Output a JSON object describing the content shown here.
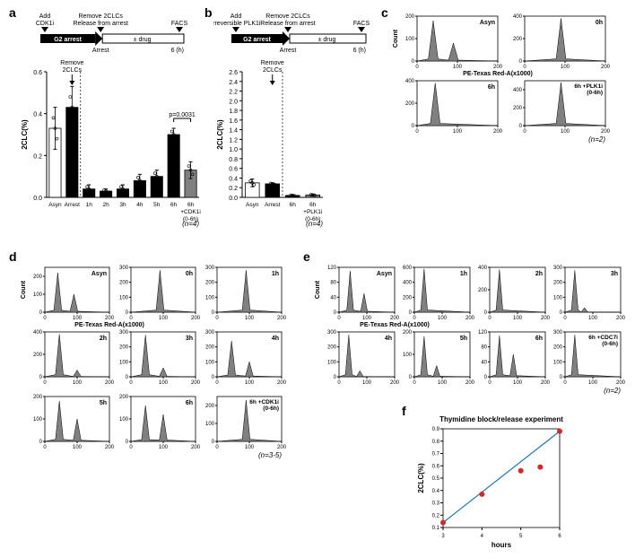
{
  "panel_a": {
    "label": "a",
    "timeline": {
      "labels": [
        "Add CDK1i",
        "Remove 2CLCs Release from arrest",
        "FACS"
      ],
      "segments": [
        "G2 arrest",
        "± drug"
      ],
      "arrest_label": "Arrest",
      "end_label": "6 (h)"
    },
    "chart": {
      "type": "bar",
      "ylabel": "2CLC(%)",
      "ylim": [
        0,
        0.6
      ],
      "ytick_step": 0.2,
      "annotation": "Remove 2CLCs",
      "categories": [
        "Asyn",
        "Arrest",
        "1h",
        "2h",
        "3h",
        "4h",
        "5h",
        "6h",
        "6h +CDK1i (0-6h)"
      ],
      "values": [
        0.33,
        0.43,
        0.04,
        0.03,
        0.04,
        0.08,
        0.1,
        0.3,
        0.13
      ],
      "errors": [
        0.1,
        0.1,
        0.02,
        0.01,
        0.02,
        0.03,
        0.03,
        0.03,
        0.04
      ],
      "bar_colors": [
        "#ffffff",
        "#000000",
        "#000000",
        "#000000",
        "#000000",
        "#000000",
        "#000000",
        "#000000",
        "#808080"
      ],
      "p_value": "p=0.0031",
      "n_label": "(n=4)"
    }
  },
  "panel_b": {
    "label": "b",
    "timeline": {
      "labels": [
        "Add irreversible PLK1i",
        "Remove 2CLCs Release from arrest",
        "FACS"
      ],
      "segments": [
        "G2 arrest",
        "± drug"
      ],
      "arrest_label": "Arrest",
      "end_label": "6 (h)"
    },
    "chart": {
      "type": "bar",
      "ylabel": "2CLC(%)",
      "ylim": [
        0,
        2.6
      ],
      "ytick_step": 0.2,
      "annotation": "Remove 2CLCs",
      "remove": "Remove 2CLCs",
      "categories": [
        "Asyn",
        "Arrest",
        "6h",
        "6h +PLK1i (0-6h)"
      ],
      "values": [
        0.3,
        0.28,
        0.04,
        0.05
      ],
      "errors": [
        0.08,
        0.02,
        0.01,
        0.01
      ],
      "bar_colors": [
        "#ffffff",
        "#000000",
        "#000000",
        "#808080"
      ],
      "n_label": "(n=4)"
    }
  },
  "panel_c": {
    "label": "c",
    "ylabel": "Count",
    "xlabel": "PE-Texas Red-A(x1000)",
    "n_label": "(n=2)",
    "plots": [
      {
        "title": "Asyn",
        "ymax": 200,
        "xticks": [
          0,
          100,
          200
        ],
        "peaks": [
          [
            40,
            180
          ],
          [
            90,
            80
          ]
        ]
      },
      {
        "title": "0h",
        "ymax": 400,
        "xticks": [
          0,
          100,
          200
        ],
        "peaks": [
          [
            90,
            380
          ]
        ]
      },
      {
        "title": "6h",
        "ymax": 400,
        "xticks": [
          0,
          100,
          200
        ],
        "peaks": [
          [
            45,
            380
          ]
        ]
      },
      {
        "title": "6h +PLK1i (0-6h)",
        "ymax": 500,
        "xticks": [
          0,
          100,
          200
        ],
        "peaks": [
          [
            90,
            480
          ]
        ]
      }
    ]
  },
  "panel_d": {
    "label": "d",
    "ylabel": "Count",
    "xlabel": "PE-Texas Red-A(x1000)",
    "n_label": "(n=3-5)",
    "plots": [
      {
        "title": "Asyn",
        "ymax": 250,
        "xticks": [
          0,
          100,
          200
        ],
        "peaks": [
          [
            40,
            220
          ],
          [
            90,
            100
          ]
        ]
      },
      {
        "title": "0h",
        "ymax": 300,
        "xticks": [
          0,
          100,
          200
        ],
        "peaks": [
          [
            90,
            280
          ]
        ]
      },
      {
        "title": "1h",
        "ymax": 300,
        "xticks": [
          0,
          100,
          200
        ],
        "peaks": [
          [
            90,
            280
          ]
        ]
      },
      {
        "title": "2h",
        "ymax": 400,
        "xticks": [
          0,
          100,
          200
        ],
        "peaks": [
          [
            45,
            380
          ],
          [
            100,
            60
          ]
        ]
      },
      {
        "title": "3h",
        "ymax": 300,
        "xticks": [
          0,
          100,
          200
        ],
        "peaks": [
          [
            45,
            280
          ],
          [
            100,
            60
          ]
        ]
      },
      {
        "title": "4h",
        "ymax": 300,
        "xticks": [
          0,
          100,
          200
        ],
        "peaks": [
          [
            45,
            240
          ],
          [
            100,
            100
          ]
        ]
      },
      {
        "title": "5h",
        "ymax": 200,
        "xticks": [
          0,
          100,
          200
        ],
        "peaks": [
          [
            45,
            180
          ],
          [
            100,
            100
          ]
        ]
      },
      {
        "title": "6h",
        "ymax": 200,
        "xticks": [
          0,
          100,
          200
        ],
        "peaks": [
          [
            45,
            160
          ],
          [
            100,
            120
          ]
        ]
      },
      {
        "title": "6h +CDK1i (0-6h)",
        "ymax": 250,
        "xticks": [
          0,
          100,
          200
        ],
        "peaks": [
          [
            90,
            230
          ]
        ]
      }
    ]
  },
  "panel_e": {
    "label": "e",
    "ylabel": "Count",
    "xlabel": "PE-Texas Red-A(x1000)",
    "n_label": "(n=2)",
    "plots": [
      {
        "title": "Asyn",
        "ymax": 120,
        "xticks": [
          0,
          100,
          200
        ],
        "peaks": [
          [
            40,
            110
          ],
          [
            90,
            50
          ]
        ]
      },
      {
        "title": "1h",
        "ymax": 600,
        "xticks": [
          0,
          100,
          200
        ],
        "peaks": [
          [
            35,
            580
          ]
        ]
      },
      {
        "title": "2h",
        "ymax": 400,
        "xticks": [
          0,
          100,
          200
        ],
        "peaks": [
          [
            35,
            380
          ]
        ]
      },
      {
        "title": "3h",
        "ymax": 300,
        "xticks": [
          0,
          100,
          200
        ],
        "peaks": [
          [
            35,
            280
          ],
          [
            70,
            30
          ]
        ]
      },
      {
        "title": "4h",
        "ymax": 300,
        "xticks": [
          0,
          100,
          200
        ],
        "peaks": [
          [
            35,
            280
          ],
          [
            75,
            40
          ]
        ]
      },
      {
        "title": "5h",
        "ymax": 200,
        "xticks": [
          0,
          100,
          200
        ],
        "peaks": [
          [
            35,
            180
          ],
          [
            80,
            50
          ]
        ]
      },
      {
        "title": "6h",
        "ymax": 120,
        "xticks": [
          0,
          100,
          200
        ],
        "peaks": [
          [
            35,
            110
          ],
          [
            85,
            60
          ]
        ]
      },
      {
        "title": "6h +CDC7i (0-6h)",
        "ymax": 300,
        "xticks": [
          0,
          100,
          200
        ],
        "peaks": [
          [
            35,
            280
          ]
        ]
      }
    ]
  },
  "panel_f": {
    "label": "f",
    "title": "Thymidine block/release experiment",
    "ylabel": "2CLC(%)",
    "xlabel": "hours",
    "xlim": [
      3,
      6
    ],
    "ylim": [
      0.1,
      0.9
    ],
    "xtick_step": 1,
    "ytick_step": 0.1,
    "points": [
      [
        3,
        0.14
      ],
      [
        4,
        0.37
      ],
      [
        5,
        0.56
      ],
      [
        5.5,
        0.59
      ],
      [
        6,
        0.88
      ]
    ],
    "point_color": "#d62728",
    "line_color": "#1f77b4"
  },
  "colors": {
    "hist_fill": "#808080",
    "axis": "#000000"
  }
}
